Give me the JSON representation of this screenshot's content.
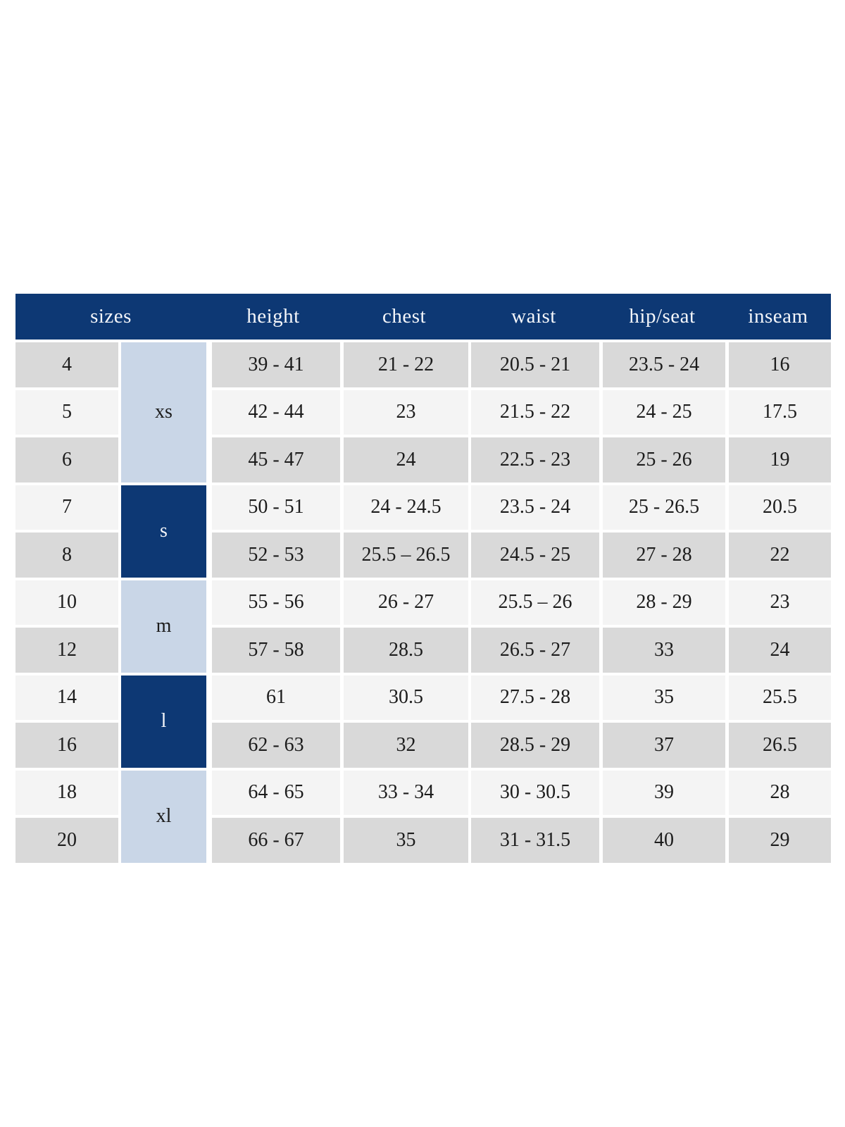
{
  "colors": {
    "header_bg": "#0d3874",
    "header_text": "#f4f6fa",
    "group_light_bg": "#c9d6e7",
    "group_dark_bg": "#0d3874",
    "row_gray_bg": "#d9d9d9",
    "row_light_bg": "#f4f4f4",
    "cell_text": "#1c1c1c",
    "gap": "#ffffff",
    "page_bg": "#ffffff"
  },
  "chart_data": {
    "type": "table",
    "columns": [
      {
        "key": "sizes",
        "label": "sizes"
      },
      {
        "key": "height",
        "label": "height"
      },
      {
        "key": "chest",
        "label": "chest"
      },
      {
        "key": "waist",
        "label": "waist"
      },
      {
        "key": "hip_seat",
        "label": "hip/seat"
      },
      {
        "key": "inseam",
        "label": "inseam"
      }
    ],
    "size_groups": [
      {
        "label": "xs",
        "span": 3,
        "variant": "light"
      },
      {
        "label": "s",
        "span": 2,
        "variant": "dark"
      },
      {
        "label": "m",
        "span": 2,
        "variant": "light"
      },
      {
        "label": "l",
        "span": 2,
        "variant": "dark"
      },
      {
        "label": "xl",
        "span": 2,
        "variant": "light"
      }
    ],
    "rows": [
      {
        "size": "4",
        "group": "xs",
        "height": "39 - 41",
        "chest": "21 - 22",
        "waist": "20.5 - 21",
        "hip_seat": "23.5 - 24",
        "inseam": "16"
      },
      {
        "size": "5",
        "group": "xs",
        "height": "42 - 44",
        "chest": "23",
        "waist": "21.5 - 22",
        "hip_seat": "24 - 25",
        "inseam": "17.5"
      },
      {
        "size": "6",
        "group": "xs",
        "height": "45 - 47",
        "chest": "24",
        "waist": "22.5 - 23",
        "hip_seat": "25 - 26",
        "inseam": "19"
      },
      {
        "size": "7",
        "group": "s",
        "height": "50 - 51",
        "chest": "24 - 24.5",
        "waist": "23.5 - 24",
        "hip_seat": "25 - 26.5",
        "inseam": "20.5"
      },
      {
        "size": "8",
        "group": "s",
        "height": "52 - 53",
        "chest": "25.5 – 26.5",
        "waist": "24.5 - 25",
        "hip_seat": "27 - 28",
        "inseam": "22"
      },
      {
        "size": "10",
        "group": "m",
        "height": "55 - 56",
        "chest": "26 - 27",
        "waist": "25.5 – 26",
        "hip_seat": "28 - 29",
        "inseam": "23"
      },
      {
        "size": "12",
        "group": "m",
        "height": "57 - 58",
        "chest": "28.5",
        "waist": "26.5 - 27",
        "hip_seat": "33",
        "inseam": "24"
      },
      {
        "size": "14",
        "group": "l",
        "height": "61",
        "chest": "30.5",
        "waist": "27.5 - 28",
        "hip_seat": "35",
        "inseam": "25.5"
      },
      {
        "size": "16",
        "group": "l",
        "height": "62 - 63",
        "chest": "32",
        "waist": "28.5 - 29",
        "hip_seat": "37",
        "inseam": "26.5"
      },
      {
        "size": "18",
        "group": "xl",
        "height": "64 - 65",
        "chest": "33 - 34",
        "waist": "30 - 30.5",
        "hip_seat": "39",
        "inseam": "28"
      },
      {
        "size": "20",
        "group": "xl",
        "height": "66 - 67",
        "chest": "35",
        "waist": "31 - 31.5",
        "hip_seat": "40",
        "inseam": "29"
      }
    ]
  }
}
